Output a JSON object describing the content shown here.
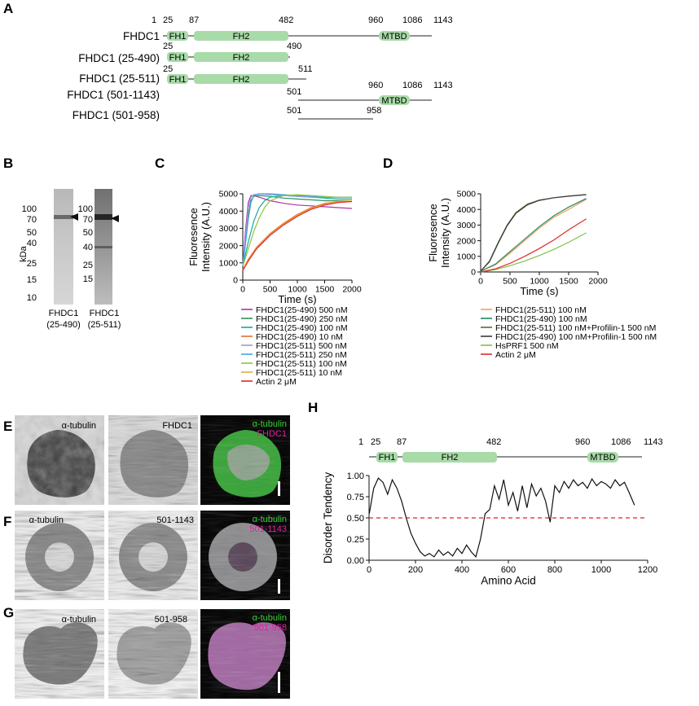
{
  "panels": {
    "A": "A",
    "B": "B",
    "C": "C",
    "D": "D",
    "E": "E",
    "F": "F",
    "G": "G",
    "H": "H"
  },
  "panelA": {
    "constructs": [
      {
        "name": "FHDC1"
      },
      {
        "name": "FHDC1 (25-490)"
      },
      {
        "name": "FHDC1 (25-511)"
      },
      {
        "name": "FHDC1 (501-1143)"
      },
      {
        "name": "FHDC1 (501-958)"
      }
    ],
    "top_numbers": [
      "1",
      "25",
      "87",
      "482",
      "960",
      "1086",
      "1143"
    ],
    "row2_numbers": [
      "25",
      "490"
    ],
    "row3_numbers": [
      "25",
      "511"
    ],
    "row4_numbers": [
      "501",
      "960",
      "1086",
      "1143"
    ],
    "row5_numbers": [
      "501",
      "958"
    ],
    "domains": {
      "fh1": "FH1",
      "fh2": "FH2",
      "mtbd": "MTBD"
    }
  },
  "panelB": {
    "markers": [
      "100",
      "70",
      "50",
      "40",
      "25",
      "15",
      "10"
    ],
    "markers2": [
      "100",
      "70",
      "50",
      "40",
      "25",
      "15"
    ],
    "unit": "kDa",
    "lane1_label": [
      "FHDC1",
      "(25-490)"
    ],
    "lane2_label": [
      "FHDC1",
      "(25-511)"
    ]
  },
  "chart_data": [
    {
      "type": "line",
      "xlabel": "Time (s)",
      "ylabel": "Fluoresence Intensity (A.U.)",
      "xlim": [
        0,
        2000
      ],
      "ylim": [
        0,
        5000
      ],
      "xticks": [
        "0",
        "500",
        "1000",
        "1500",
        "2000"
      ],
      "yticks": [
        "0",
        "1000",
        "2000",
        "3000",
        "4000",
        "5000"
      ],
      "legend_placement": "below",
      "series": [
        {
          "name": "FHDC1(25-490) 500 nM",
          "color": "#b030b0",
          "x": [
            0,
            50,
            100,
            150,
            200,
            300,
            500,
            750,
            1000,
            1250,
            1500,
            1750,
            2000
          ],
          "y": [
            800,
            2900,
            4500,
            4900,
            4900,
            4800,
            4600,
            4450,
            4350,
            4300,
            4250,
            4200,
            4150
          ]
        },
        {
          "name": "FHDC1(25-490) 250 nM",
          "color": "#2f8f5f",
          "x": [
            0,
            50,
            100,
            150,
            200,
            300,
            500,
            750,
            1000,
            1250,
            1500,
            1750,
            2000
          ],
          "y": [
            800,
            2300,
            3800,
            4600,
            4850,
            4900,
            4850,
            4750,
            4700,
            4650,
            4600,
            4600,
            4600
          ]
        },
        {
          "name": "FHDC1(25-490) 100 nM",
          "color": "#1aa6a0",
          "x": [
            0,
            100,
            200,
            300,
            400,
            500,
            750,
            1000,
            1250,
            1500,
            1750,
            2000
          ],
          "y": [
            800,
            2200,
            3400,
            4200,
            4600,
            4800,
            4900,
            4850,
            4800,
            4750,
            4700,
            4700
          ]
        },
        {
          "name": "FHDC1(25-490) 10 nM",
          "color": "#e8702a",
          "x": [
            0,
            100,
            250,
            500,
            750,
            1000,
            1250,
            1500,
            1750,
            2000
          ],
          "y": [
            600,
            1200,
            1900,
            2700,
            3300,
            3800,
            4200,
            4450,
            4550,
            4600
          ]
        },
        {
          "name": "FHDC1(25-511) 500 nM",
          "color": "#a49ac8",
          "x": [
            0,
            50,
            100,
            150,
            200,
            300,
            500,
            750,
            1000,
            1250,
            1500,
            1750,
            2000
          ],
          "y": [
            800,
            2600,
            4200,
            4800,
            4950,
            5000,
            4950,
            4900,
            4850,
            4800,
            4800,
            4800,
            4800
          ]
        },
        {
          "name": "FHDC1(25-511) 250 nM",
          "color": "#3fa5e6",
          "x": [
            0,
            50,
            100,
            150,
            200,
            300,
            500,
            750,
            1000,
            1250,
            1500,
            1750,
            2000
          ],
          "y": [
            800,
            2100,
            3500,
            4500,
            4900,
            5000,
            5000,
            4950,
            4900,
            4850,
            4800,
            4800,
            4800
          ]
        },
        {
          "name": "FHDC1(25-511) 100 nM",
          "color": "#8cc63f",
          "x": [
            0,
            100,
            200,
            300,
            400,
            500,
            750,
            1000,
            1250,
            1500,
            1750,
            2000
          ],
          "y": [
            800,
            1800,
            2800,
            3600,
            4200,
            4600,
            4900,
            4950,
            4900,
            4850,
            4800,
            4800
          ]
        },
        {
          "name": "FHDC1(25-511) 10 nM",
          "color": "#d9b13a",
          "x": [
            0,
            100,
            250,
            500,
            750,
            1000,
            1250,
            1500,
            1750,
            2000
          ],
          "y": [
            600,
            1150,
            1850,
            2650,
            3250,
            3750,
            4150,
            4400,
            4550,
            4600
          ]
        },
        {
          "name": "Actin 2 μM",
          "color": "#e32626",
          "x": [
            0,
            100,
            250,
            500,
            750,
            1000,
            1250,
            1500,
            1750,
            2000
          ],
          "y": [
            550,
            1100,
            1800,
            2600,
            3200,
            3700,
            4100,
            4350,
            4500,
            4550
          ]
        }
      ]
    },
    {
      "type": "line",
      "xlabel": "Time (s)",
      "ylabel": "Fluoresence Intensity (A.U.)",
      "xlim": [
        0,
        2000
      ],
      "ylim": [
        0,
        5000
      ],
      "xticks": [
        "0",
        "500",
        "1000",
        "1500",
        "2000"
      ],
      "yticks": [
        "0",
        "1000",
        "2000",
        "3000",
        "4000",
        "5000"
      ],
      "legend_placement": "below",
      "series": [
        {
          "name": "FHDC1(25-511) 100 nM",
          "color": "#f5a25d",
          "x": [
            0,
            250,
            500,
            750,
            1000,
            1250,
            1500,
            1800
          ],
          "y": [
            50,
            450,
            1200,
            2000,
            2800,
            3500,
            4000,
            4650
          ]
        },
        {
          "name": "FHDC1(25-490) 100 nM",
          "color": "#1f8a66",
          "x": [
            0,
            250,
            500,
            750,
            1000,
            1250,
            1500,
            1800
          ],
          "y": [
            50,
            500,
            1300,
            2100,
            2900,
            3600,
            4150,
            4700
          ]
        },
        {
          "name": "FHDC1(25-511) 100 nM+Profilin-1 500 nM",
          "color": "#5f6b2e",
          "x": [
            0,
            150,
            300,
            450,
            600,
            800,
            1000,
            1250,
            1500,
            1800
          ],
          "y": [
            50,
            700,
            1900,
            3000,
            3800,
            4350,
            4600,
            4750,
            4850,
            4950
          ]
        },
        {
          "name": "FHDC1(25-490) 100 nM+Profilin-1 500 nM",
          "color": "#3a3a3a",
          "x": [
            0,
            150,
            300,
            450,
            600,
            800,
            1000,
            1250,
            1500,
            1800
          ],
          "y": [
            50,
            650,
            1850,
            2950,
            3750,
            4300,
            4580,
            4750,
            4850,
            4950
          ]
        },
        {
          "name": "HsPRF1 500 nM",
          "color": "#7fc24a",
          "x": [
            0,
            250,
            500,
            750,
            1000,
            1250,
            1500,
            1800
          ],
          "y": [
            0,
            150,
            400,
            700,
            1050,
            1450,
            1900,
            2500
          ]
        },
        {
          "name": "Actin 2 μM",
          "color": "#e02a2a",
          "x": [
            0,
            250,
            500,
            750,
            1000,
            1250,
            1500,
            1800
          ],
          "y": [
            0,
            200,
            550,
            1000,
            1500,
            2050,
            2700,
            3400
          ]
        }
      ]
    },
    {
      "type": "line",
      "xlabel": "Amino Acid",
      "ylabel": "Disorder Tendency",
      "xlim": [
        0,
        1200
      ],
      "ylim": [
        0,
        1
      ],
      "xticks": [
        "0",
        "200",
        "400",
        "600",
        "800",
        "1000",
        "1200"
      ],
      "yticks": [
        "0.00",
        "0.25",
        "0.50",
        "0.75",
        "1.00"
      ],
      "threshold": 0.5,
      "threshold_color": "#e02020",
      "series": [
        {
          "color": "#111111",
          "x": [
            1,
            20,
            40,
            60,
            80,
            100,
            120,
            140,
            160,
            180,
            200,
            220,
            240,
            260,
            280,
            300,
            320,
            340,
            360,
            380,
            400,
            420,
            440,
            460,
            480,
            500,
            520,
            540,
            560,
            580,
            600,
            620,
            640,
            660,
            680,
            700,
            720,
            740,
            760,
            780,
            800,
            820,
            840,
            860,
            880,
            900,
            920,
            940,
            960,
            980,
            1000,
            1020,
            1040,
            1060,
            1080,
            1100,
            1120,
            1143
          ],
          "y": [
            0.55,
            0.85,
            0.97,
            0.92,
            0.78,
            0.95,
            0.85,
            0.7,
            0.5,
            0.32,
            0.2,
            0.1,
            0.05,
            0.08,
            0.04,
            0.12,
            0.06,
            0.1,
            0.05,
            0.14,
            0.08,
            0.18,
            0.1,
            0.04,
            0.25,
            0.55,
            0.6,
            0.88,
            0.72,
            0.95,
            0.65,
            0.8,
            0.58,
            0.88,
            0.62,
            0.9,
            0.76,
            0.85,
            0.7,
            0.45,
            0.88,
            0.8,
            0.93,
            0.85,
            0.95,
            0.88,
            0.92,
            0.85,
            0.96,
            0.88,
            0.93,
            0.9,
            0.85,
            0.95,
            0.88,
            0.92,
            0.8,
            0.65
          ]
        }
      ]
    }
  ],
  "panelC": {
    "legend": [
      "FHDC1(25-490) 500 nM",
      "FHDC1(25-490) 250 nM",
      "FHDC1(25-490) 100 nM",
      "FHDC1(25-490) 10 nM",
      "FHDC1(25-511) 500 nM",
      "FHDC1(25-511) 250 nM",
      "FHDC1(25-511) 100 nM",
      "FHDC1(25-511) 10 nM",
      "Actin 2 μM"
    ]
  },
  "panelD": {
    "legend": [
      "FHDC1(25-511) 100 nM",
      "FHDC1(25-490) 100 nM",
      "FHDC1(25-511) 100 nM+Profilin-1 500 nM",
      "FHDC1(25-490) 100 nM+Profilin-1 500 nM",
      "HsPRF1 500 nM",
      "Actin 2 μM"
    ]
  },
  "panelE": {
    "labels": [
      "α-tubulin",
      "FHDC1"
    ],
    "merge_green": "α-tubulin",
    "merge_magenta": "FHDC1"
  },
  "panelF": {
    "labels": [
      "α-tubulin",
      "501-1143"
    ],
    "merge_green": "α-tubulin",
    "merge_magenta": "501-1143"
  },
  "panelG": {
    "labels": [
      "α-tubulin",
      "501-958"
    ],
    "merge_green": "α-tubulin",
    "merge_magenta": "501-958"
  },
  "panelH": {
    "numbers": [
      "1",
      "25",
      "87",
      "482",
      "960",
      "1086",
      "1143"
    ],
    "domains": {
      "fh1": "FH1",
      "fh2": "FH2",
      "mtbd": "MTBD"
    }
  },
  "colors": {
    "domain_fill": "#a8dba8",
    "green": "#3bd13b",
    "magenta": "#e01fa5"
  }
}
